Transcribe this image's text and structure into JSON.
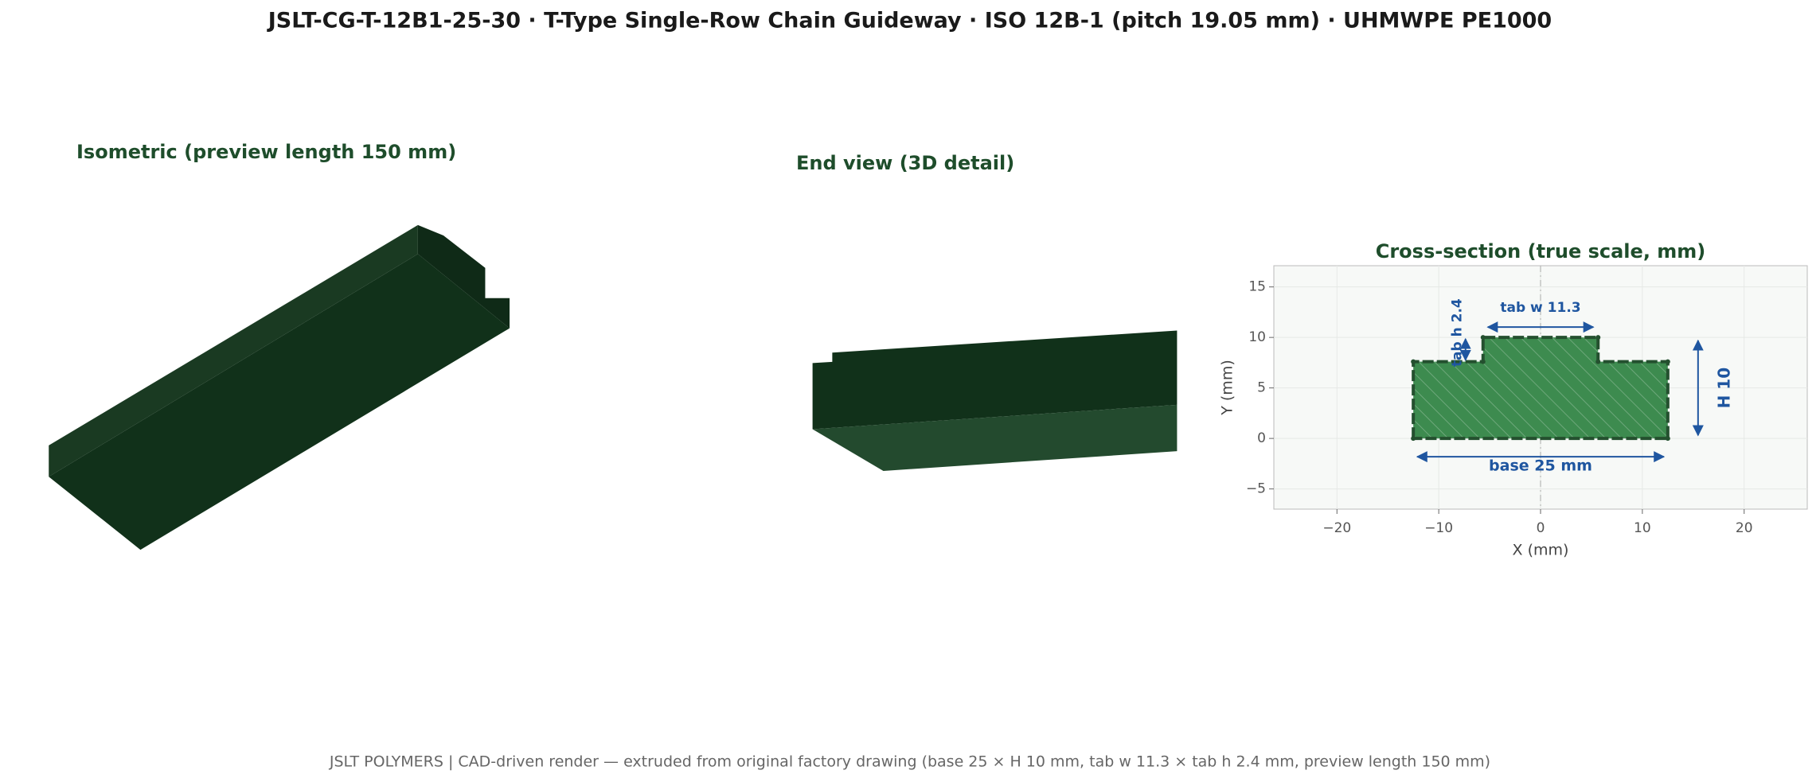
{
  "title": "JSLT-CG-T-12B1-25-30   ·   T-Type Single-Row Chain Guideway   ·   ISO 12B-1 (pitch 19.05 mm)   ·   UHMWPE PE1000",
  "isometric": {
    "title": "Isometric  (preview length 150 mm)"
  },
  "end_view": {
    "title": "End view (3D detail)"
  },
  "footer": "JSLT POLYMERS  |  CAD-driven render — extruded from original factory drawing  (base 25 × H 10 mm, tab w 11.3 × tab h 2.4 mm, preview length 150 mm)",
  "chart_data": {
    "type": "area",
    "title": "Cross-section (true scale, mm)",
    "xlabel": "X  (mm)",
    "ylabel": "Y  (mm)",
    "xlim": [
      -26.2,
      26.2
    ],
    "ylim": [
      -7,
      17.1
    ],
    "xticks": [
      {
        "value": -20,
        "label": "−20"
      },
      {
        "value": -10,
        "label": "−10"
      },
      0,
      10,
      20
    ],
    "yticks": [
      {
        "value": -5,
        "label": "−5"
      },
      0,
      5,
      10,
      15
    ],
    "grid": true,
    "series": [
      {
        "color": "#3d8b4f",
        "x": [
          -12.5,
          -12.5,
          -5.65,
          -5.65,
          5.65,
          5.65,
          12.5,
          12.5
        ],
        "values": [
          0,
          7.6,
          7.6,
          10,
          10,
          7.6,
          7.6,
          0
        ]
      }
    ],
    "annotations": {
      "tab_w": "tab w 11.3",
      "tab_h": "tab h 2.4",
      "height": "H 10",
      "base": "base 25 mm"
    }
  }
}
